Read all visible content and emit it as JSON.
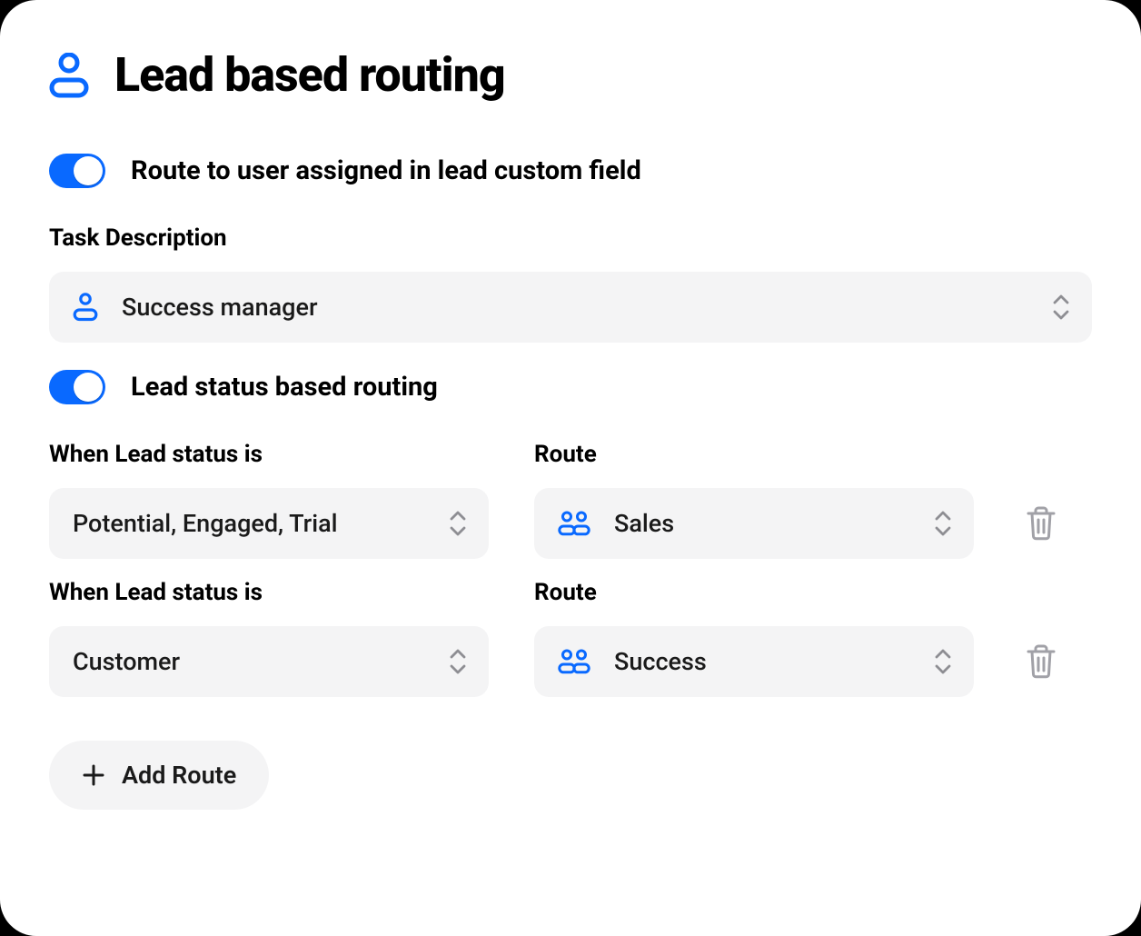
{
  "colors": {
    "accent_blue": "#0969ff",
    "panel_bg": "#f4f4f5",
    "text_primary": "#000000",
    "text_secondary": "#1a1a1a",
    "icon_muted": "#a1a1a7"
  },
  "page": {
    "title": "Lead based routing"
  },
  "toggle_custom_field": {
    "enabled": true,
    "label": "Route to user assigned in lead custom field"
  },
  "task_description": {
    "label": "Task Description",
    "selected_value": "Success manager"
  },
  "toggle_status_routing": {
    "enabled": true,
    "label": "Lead status based routing"
  },
  "column_labels": {
    "condition": "When Lead status is",
    "route": "Route"
  },
  "routes": [
    {
      "condition_value": "Potential, Engaged, Trial",
      "route_value": "Sales"
    },
    {
      "condition_value": "Customer",
      "route_value": "Success"
    }
  ],
  "add_route_button": {
    "label": "Add Route"
  }
}
